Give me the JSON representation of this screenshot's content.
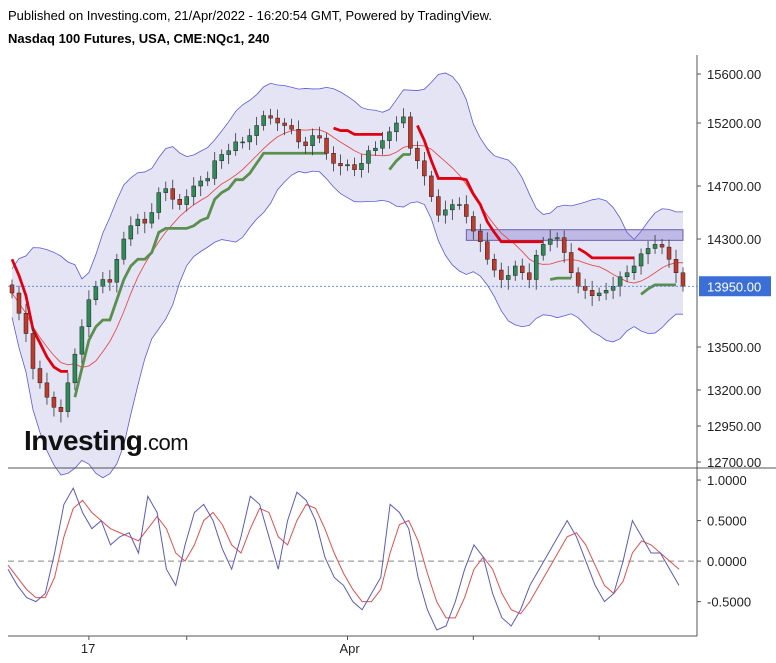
{
  "header": {
    "published": "Published on Investing.com, 21/Apr/2022 - 16:20:54 GMT, Powered by TradingView.",
    "instrument": "Nasdaq 100 Futures, USA, CME:NQc1, 240"
  },
  "logo": {
    "brand": "Investing",
    "suffix": ".com"
  },
  "colors": {
    "up": "#2e8b57",
    "down": "#c0392b",
    "band_fill": "#e4e4f5",
    "band_line": "#5b5bd6",
    "trail_red": "#e00010",
    "trail_green": "#5a8f4e",
    "ma": "#e05050",
    "price_badge": "#3b6fd6",
    "stoch_k": "#5b5bbd",
    "stoch_d": "#e05050"
  },
  "chart_data": [
    {
      "type": "candlestick",
      "title": "Nasdaq 100 Futures, USA, CME:NQc1, 240",
      "ylim": [
        12700,
        15700
      ],
      "y_ticks": [
        "15600.00",
        "15200.00",
        "14700.00",
        "14300.00",
        "13500.00",
        "13200.00",
        "12950.00",
        "12700.00"
      ],
      "y_tick_values": [
        15600,
        15200,
        14700,
        14300,
        13500,
        13200,
        12950,
        12700
      ],
      "current_price": 13950,
      "current_price_label": "13950.00",
      "x_ticks": [
        "17",
        "Apr"
      ],
      "x_tick_index": [
        11,
        48
      ],
      "resistance_box": {
        "start_index": 65,
        "end_index": 96,
        "low": 14290,
        "high": 14370
      },
      "closes": [
        13900,
        13750,
        13600,
        13350,
        13250,
        13150,
        13080,
        13050,
        13250,
        13450,
        13650,
        13850,
        13950,
        14000,
        13980,
        14150,
        14300,
        14400,
        14450,
        14420,
        14500,
        14650,
        14680,
        14600,
        14560,
        14620,
        14700,
        14740,
        14760,
        14900,
        14950,
        14980,
        15050,
        15050,
        15100,
        15180,
        15260,
        15240,
        15200,
        15180,
        15150,
        15050,
        15020,
        15100,
        15080,
        14960,
        14880,
        14860,
        14870,
        14830,
        14880,
        14980,
        15000,
        15060,
        15130,
        15200,
        15250,
        15000,
        14900,
        14780,
        14620,
        14480,
        14520,
        14560,
        14560,
        14470,
        14360,
        14280,
        14150,
        14070,
        14000,
        14030,
        14100,
        14050,
        14000,
        14180,
        14260,
        14300,
        14310,
        14200,
        14050,
        13950,
        13920,
        13880,
        13900,
        13920,
        13950,
        14020,
        14050,
        14100,
        14190,
        14230,
        14260,
        14240,
        14150,
        14050,
        13950
      ],
      "stochastic": {
        "ylim": [
          -0.85,
          1.05
        ],
        "y_ticks": [
          "1.0000",
          "0.5000",
          "0.0000",
          "-0.5000"
        ],
        "y_tick_values": [
          1.0,
          0.5,
          0.0,
          -0.5
        ],
        "k": [
          -0.1,
          -0.3,
          -0.45,
          -0.5,
          -0.4,
          0.1,
          0.7,
          0.9,
          0.6,
          0.4,
          0.5,
          0.2,
          0.3,
          0.35,
          0.1,
          0.8,
          0.6,
          -0.1,
          -0.3,
          0.2,
          0.6,
          0.7,
          0.5,
          0.15,
          -0.1,
          0.3,
          0.8,
          0.7,
          0.3,
          -0.1,
          0.5,
          0.85,
          0.75,
          0.5,
          0.05,
          -0.2,
          -0.3,
          -0.5,
          -0.6,
          -0.4,
          -0.2,
          0.7,
          0.6,
          0.4,
          -0.2,
          -0.6,
          -0.85,
          -0.8,
          -0.5,
          -0.1,
          0.2,
          0.05,
          -0.4,
          -0.7,
          -0.8,
          -0.6,
          -0.3,
          -0.1,
          0.1,
          0.3,
          0.5,
          0.3,
          0.0,
          -0.3,
          -0.5,
          -0.4,
          0.0,
          0.5,
          0.3,
          0.1,
          0.1,
          -0.1,
          -0.3
        ],
        "d": [
          -0.05,
          -0.2,
          -0.35,
          -0.45,
          -0.45,
          -0.2,
          0.3,
          0.65,
          0.75,
          0.6,
          0.5,
          0.4,
          0.35,
          0.3,
          0.25,
          0.4,
          0.55,
          0.4,
          0.1,
          0.0,
          0.2,
          0.5,
          0.6,
          0.45,
          0.2,
          0.1,
          0.4,
          0.65,
          0.6,
          0.3,
          0.2,
          0.5,
          0.7,
          0.65,
          0.4,
          0.1,
          -0.15,
          -0.35,
          -0.5,
          -0.5,
          -0.35,
          0.1,
          0.45,
          0.5,
          0.25,
          -0.15,
          -0.5,
          -0.7,
          -0.7,
          -0.45,
          -0.1,
          0.05,
          -0.1,
          -0.4,
          -0.6,
          -0.65,
          -0.5,
          -0.3,
          -0.1,
          0.1,
          0.3,
          0.35,
          0.2,
          -0.05,
          -0.3,
          -0.4,
          -0.25,
          0.1,
          0.25,
          0.2,
          0.1,
          0.0,
          -0.1
        ]
      }
    }
  ]
}
